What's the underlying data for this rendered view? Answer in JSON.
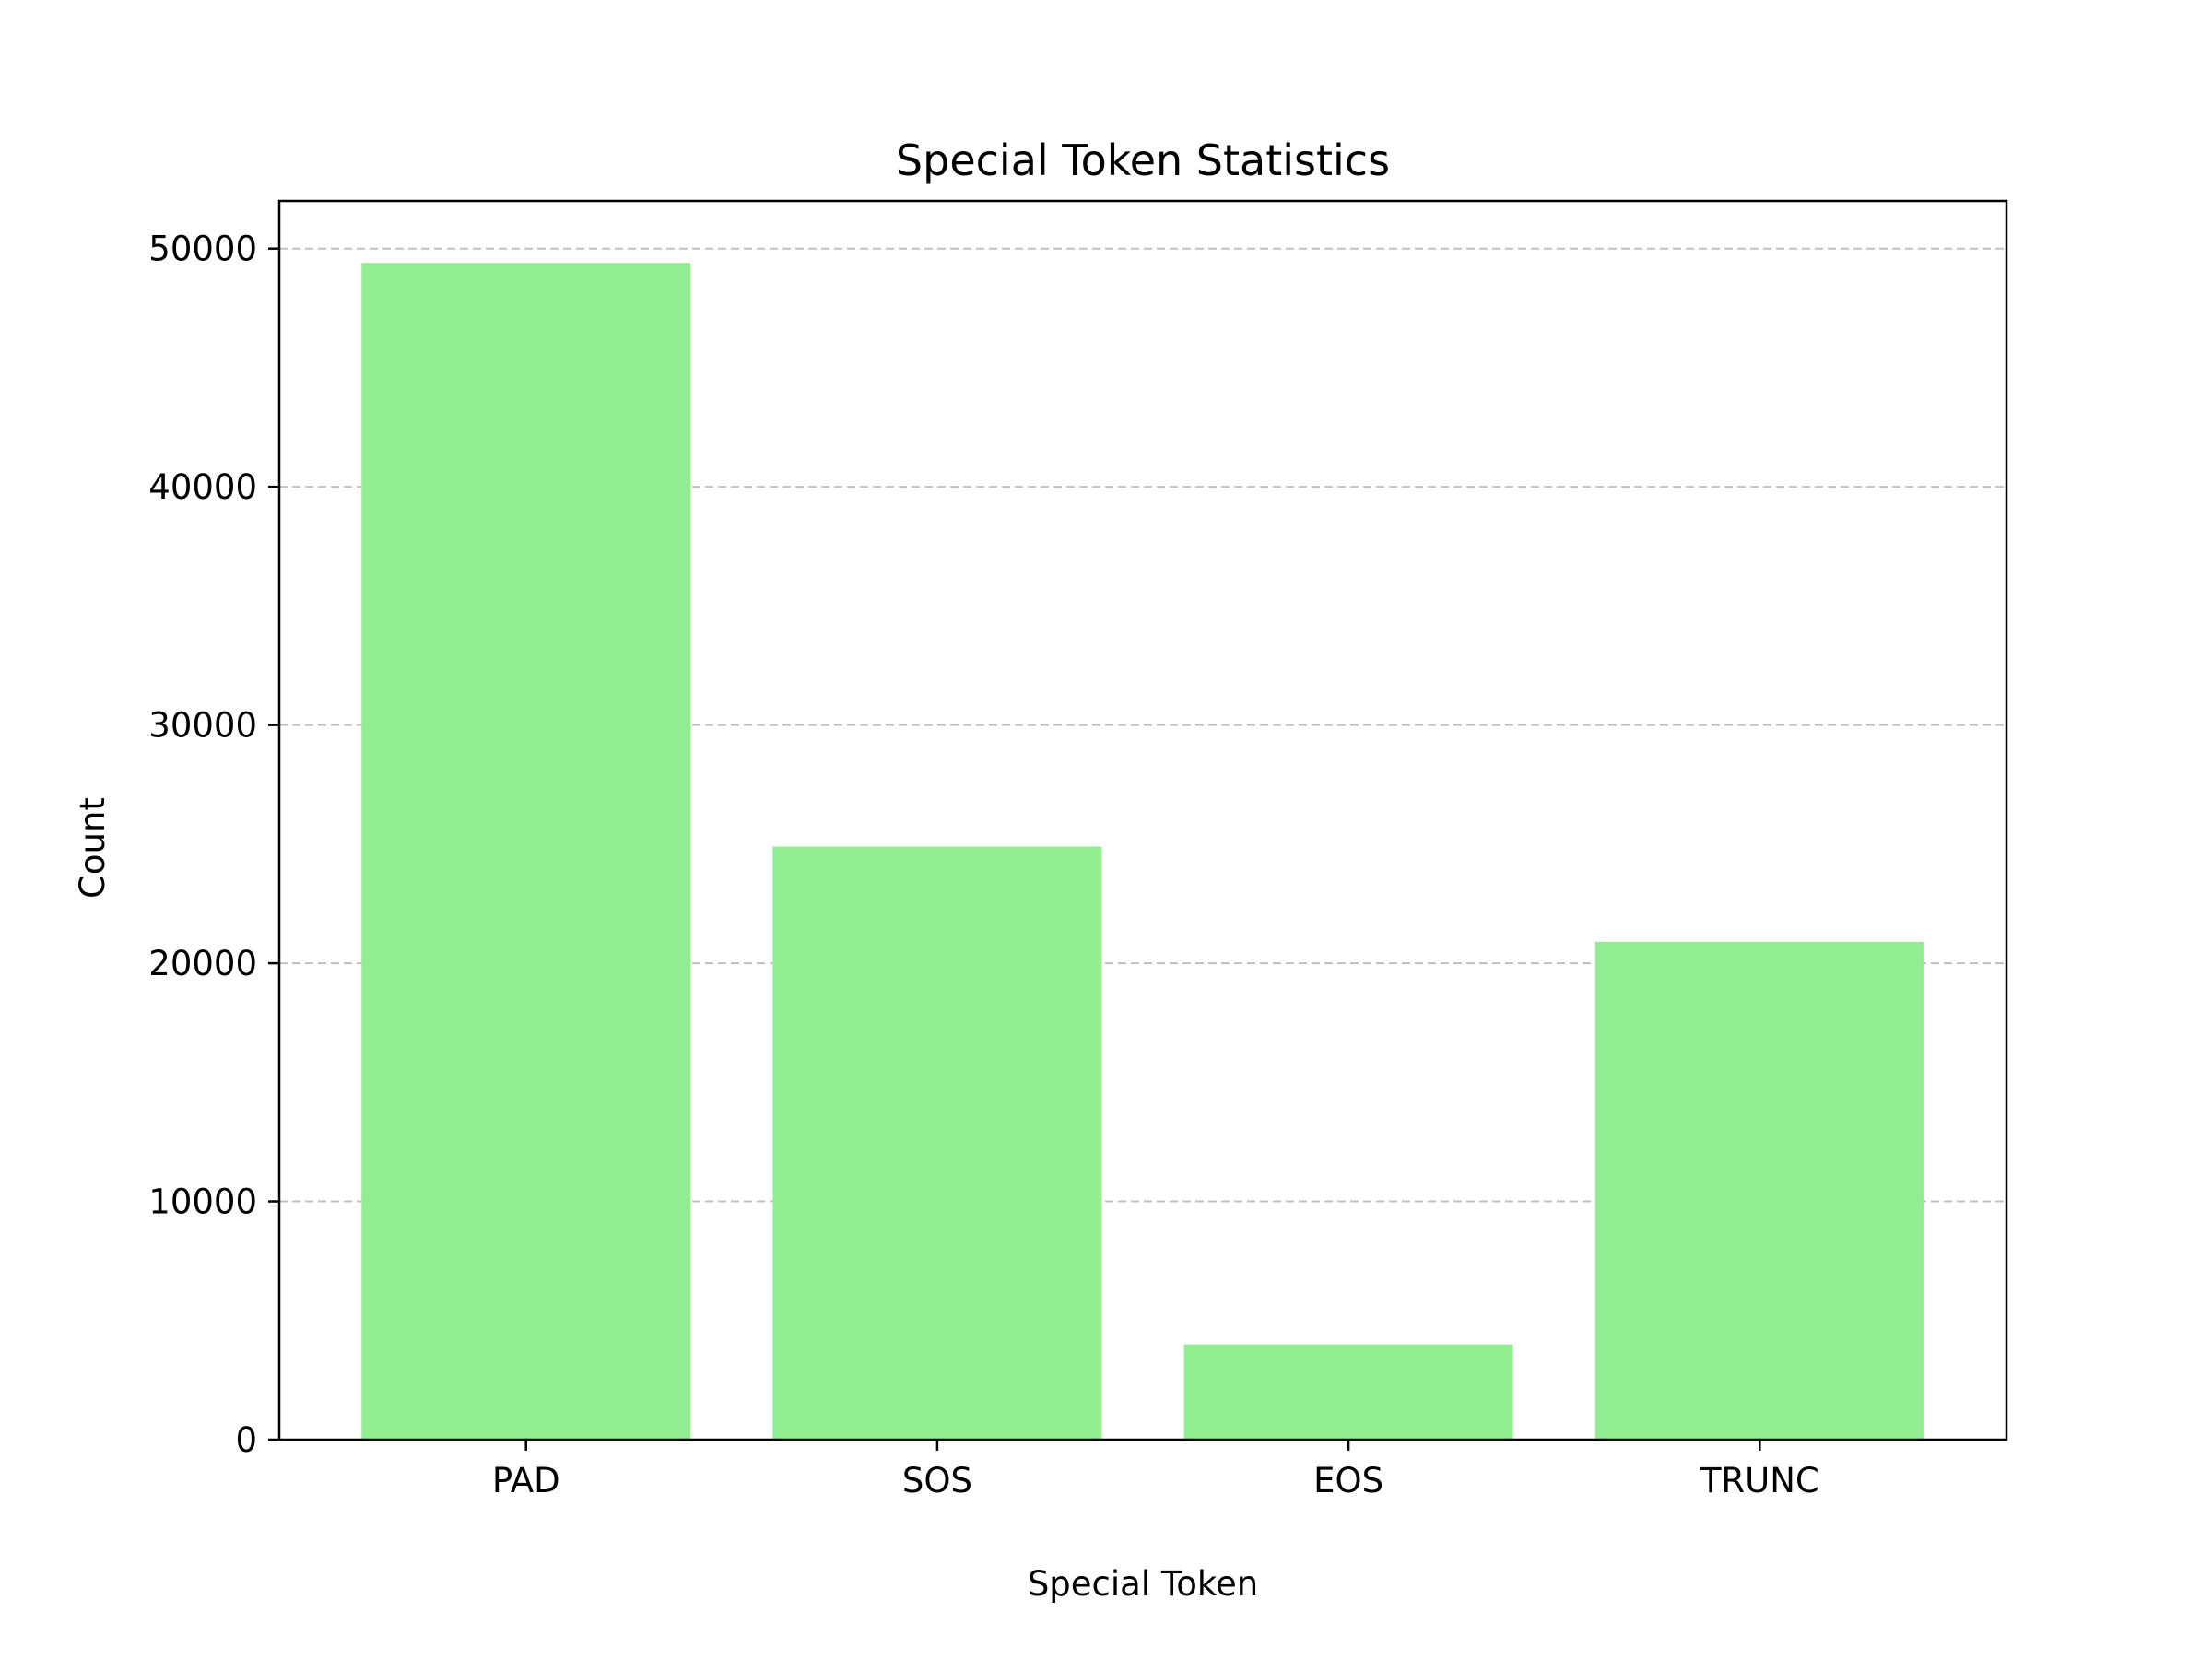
{
  "chart_data": {
    "type": "bar",
    "title": "Special Token Statistics",
    "xlabel": "Special Token",
    "ylabel": "Count",
    "categories": [
      "PAD",
      "SOS",
      "EOS",
      "TRUNC"
    ],
    "values": [
      49400,
      24900,
      4000,
      20900
    ],
    "ylim": [
      0,
      52000
    ],
    "yticks": [
      0,
      10000,
      20000,
      30000,
      40000,
      50000
    ],
    "ytick_labels": [
      "0",
      "10000",
      "20000",
      "30000",
      "40000",
      "50000"
    ],
    "grid": "y-axis dashed",
    "bar_color": "#90ee90",
    "grid_color": "#c0c0c0"
  }
}
